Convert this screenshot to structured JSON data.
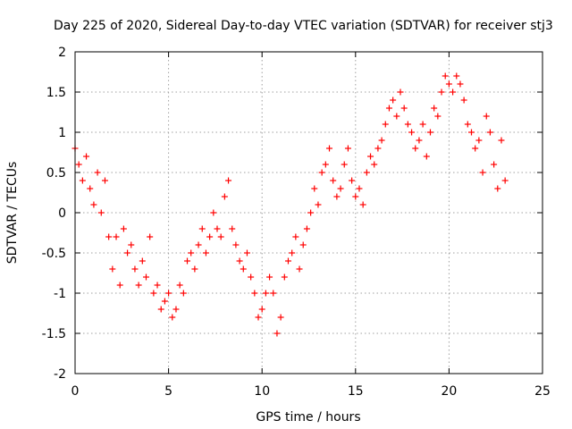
{
  "chart_data": {
    "type": "scatter",
    "title": "Day 225 of 2020, Sidereal Day-to-day VTEC variation (SDTVAR) for receiver stj3",
    "xlabel": "GPS time / hours",
    "ylabel": "SDTVAR / TECUs",
    "xlim": [
      0,
      25
    ],
    "ylim": [
      -2,
      2
    ],
    "xticks": [
      0,
      5,
      10,
      15,
      20,
      25
    ],
    "yticks": [
      -2,
      -1.5,
      -1,
      -0.5,
      0,
      0.5,
      1,
      1.5,
      2
    ],
    "xtick_labels": [
      "0",
      "5",
      "10",
      "15",
      "20",
      "25"
    ],
    "ytick_labels": [
      "-2",
      "-1.5",
      "-1",
      "-0.5",
      "0",
      "0.5",
      "1",
      "1.5",
      "2"
    ],
    "grid": true,
    "marker": "+",
    "color": "#ff0000",
    "series": [
      {
        "name": "stj3",
        "x": [
          0.0,
          0.2,
          0.4,
          0.6,
          0.8,
          1.0,
          1.2,
          1.4,
          1.6,
          1.8,
          2.0,
          2.2,
          2.4,
          2.6,
          2.8,
          3.0,
          3.2,
          3.4,
          3.6,
          3.8,
          4.0,
          4.2,
          4.4,
          4.6,
          4.8,
          5.0,
          5.2,
          5.4,
          5.6,
          5.8,
          6.0,
          6.2,
          6.4,
          6.6,
          6.8,
          7.0,
          7.2,
          7.4,
          7.6,
          7.8,
          8.0,
          8.2,
          8.4,
          8.6,
          8.8,
          9.0,
          9.2,
          9.4,
          9.6,
          9.8,
          10.0,
          10.2,
          10.4,
          10.6,
          10.8,
          11.0,
          11.2,
          11.4,
          11.6,
          11.8,
          12.0,
          12.2,
          12.4,
          12.6,
          12.8,
          13.0,
          13.2,
          13.4,
          13.6,
          13.8,
          14.0,
          14.2,
          14.4,
          14.6,
          14.8,
          15.0,
          15.2,
          15.4,
          15.6,
          15.8,
          16.0,
          16.2,
          16.4,
          16.6,
          16.8,
          17.0,
          17.2,
          17.4,
          17.6,
          17.8,
          18.0,
          18.2,
          18.4,
          18.6,
          18.8,
          19.0,
          19.2,
          19.4,
          19.6,
          19.8,
          20.0,
          20.2,
          20.4,
          20.6,
          20.8,
          21.0,
          21.2,
          21.4,
          21.6,
          21.8,
          22.0,
          22.2,
          22.4,
          22.6,
          22.8,
          23.0
        ],
        "y": [
          0.8,
          0.6,
          0.4,
          0.7,
          0.3,
          0.1,
          0.5,
          0.0,
          0.4,
          -0.3,
          -0.7,
          -0.3,
          -0.9,
          -0.2,
          -0.5,
          -0.4,
          -0.7,
          -0.9,
          -0.6,
          -0.8,
          -0.3,
          -1.0,
          -0.9,
          -1.2,
          -1.1,
          -1.0,
          -1.3,
          -1.2,
          -0.9,
          -1.0,
          -0.6,
          -0.5,
          -0.7,
          -0.4,
          -0.2,
          -0.5,
          -0.3,
          0.0,
          -0.2,
          -0.3,
          0.2,
          0.4,
          -0.2,
          -0.4,
          -0.6,
          -0.7,
          -0.5,
          -0.8,
          -1.0,
          -1.3,
          -1.2,
          -1.0,
          -0.8,
          -1.0,
          -1.5,
          -1.3,
          -0.8,
          -0.6,
          -0.5,
          -0.3,
          -0.7,
          -0.4,
          -0.2,
          0.0,
          0.3,
          0.1,
          0.5,
          0.6,
          0.8,
          0.4,
          0.2,
          0.3,
          0.6,
          0.8,
          0.4,
          0.2,
          0.3,
          0.1,
          0.5,
          0.7,
          0.6,
          0.8,
          0.9,
          1.1,
          1.3,
          1.4,
          1.2,
          1.5,
          1.3,
          1.1,
          1.0,
          0.8,
          0.9,
          1.1,
          0.7,
          1.0,
          1.3,
          1.2,
          1.5,
          1.7,
          1.6,
          1.5,
          1.7,
          1.6,
          1.4,
          1.1,
          1.0,
          0.8,
          0.9,
          0.5,
          1.2,
          1.0,
          0.6,
          0.3,
          0.9,
          0.4
        ]
      }
    ]
  }
}
